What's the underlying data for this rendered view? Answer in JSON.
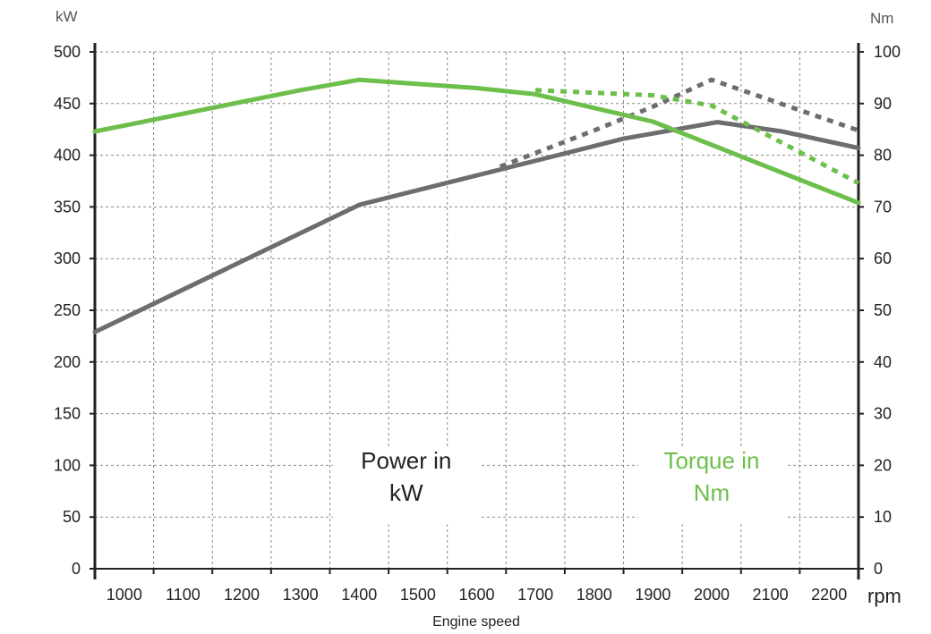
{
  "chart_data": {
    "type": "line",
    "title": "",
    "xlabel": "Engine speed",
    "x_unit": "rpm",
    "x_ticks": [
      "1000",
      "1100",
      "1200",
      "1300",
      "1400",
      "1500",
      "1600",
      "1700",
      "1800",
      "1900",
      "2000",
      "2100",
      "2200"
    ],
    "xlim": [
      950,
      2250
    ],
    "y_left": {
      "label": "kW",
      "lim": [
        0,
        500
      ],
      "ticks": [
        "0",
        "50",
        "100",
        "150",
        "200",
        "250",
        "300",
        "350",
        "400",
        "450",
        "500"
      ]
    },
    "y_right": {
      "label": "Nm",
      "lim": [
        0,
        100
      ],
      "ticks": [
        "0",
        "10",
        "20",
        "30",
        "40",
        "50",
        "60",
        "70",
        "80",
        "90",
        "100"
      ]
    },
    "grid": true,
    "series": [
      {
        "id": "power-solid",
        "axis": "left",
        "color": "#6d6d6f",
        "dash": false,
        "x": [
          950,
          1400,
          1850,
          2010,
          2120,
          2250
        ],
        "y": [
          229,
          352,
          416,
          432,
          423,
          407
        ]
      },
      {
        "id": "power-dotted",
        "axis": "left",
        "color": "#6d6d6f",
        "dash": true,
        "x": [
          1640,
          1800,
          1900,
          2000,
          2250
        ],
        "y": [
          389,
          424,
          447,
          473,
          424
        ]
      },
      {
        "id": "torque-solid",
        "axis": "right",
        "color": "#6dbf4b",
        "dash": false,
        "x": [
          950,
          1300,
          1400,
          1600,
          1700,
          1900,
          2000,
          2250
        ],
        "y": [
          84.6,
          92.6,
          94.6,
          93,
          91.8,
          86.5,
          82,
          70.8
        ]
      },
      {
        "id": "torque-dotted",
        "axis": "right",
        "color": "#6dbf4b",
        "dash": true,
        "x": [
          1700,
          1900,
          2000,
          2250
        ],
        "y": [
          92.6,
          91.6,
          89.6,
          74.6
        ]
      }
    ],
    "annotations": [
      {
        "id": "power-annotation",
        "lines": [
          "Power in",
          "kW"
        ],
        "color": "#222222",
        "x": 1480,
        "y": 5
      },
      {
        "id": "torque-annotation",
        "lines": [
          "Torque in",
          "Nm"
        ],
        "color": "#6dbf4b",
        "x": 2000,
        "y": 5
      }
    ]
  }
}
